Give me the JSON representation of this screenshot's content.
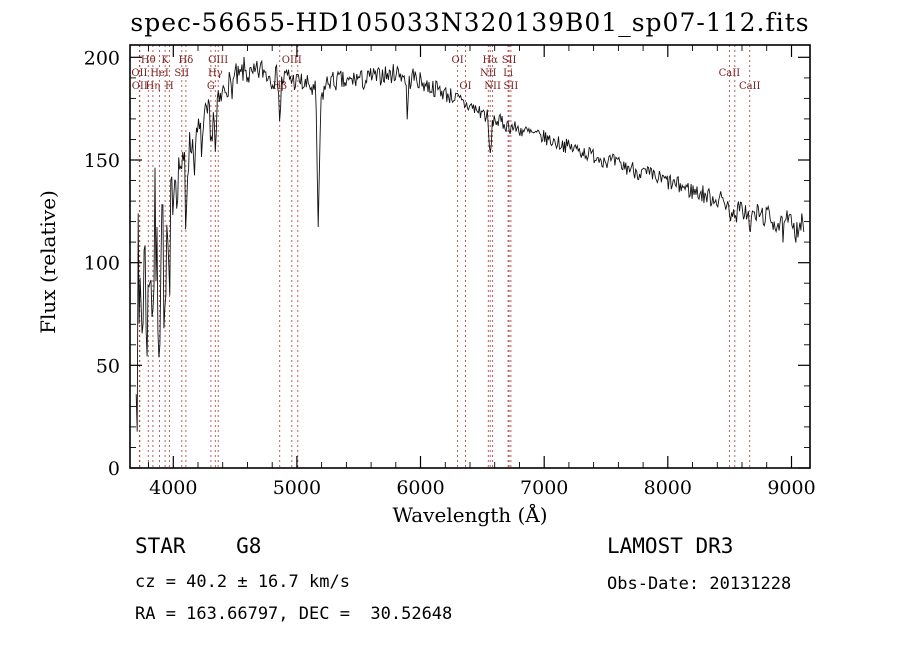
{
  "title": "spec-56655-HD105033N320139B01_sp07-112.fits",
  "annotations": {
    "star_class": "STAR    G8",
    "cz": "cz = 40.2 ± 16.7 km/s",
    "ra_dec": "RA = 163.66797, DEC =  30.52648",
    "survey": "LAMOST DR3",
    "obs_date": "Obs-Date: 20131228"
  },
  "chart_data": {
    "type": "line",
    "title": "spec-56655-HD105033N320139B01_sp07-112.fits",
    "xlabel": "Wavelength (Å)",
    "ylabel": "Flux (relative)",
    "xlim": [
      3650,
      9150
    ],
    "ylim": [
      0,
      206
    ],
    "x_ticks": [
      4000,
      5000,
      6000,
      7000,
      8000,
      9000
    ],
    "y_ticks": [
      0,
      50,
      100,
      150,
      200
    ],
    "x_minor_step": 200,
    "y_minor_step": 10,
    "grid": false,
    "legend": "none",
    "line_color": "#111111",
    "marker_color": "#b34d4d",
    "x_range": [
      3700,
      9100
    ],
    "sample_step": 8,
    "noise_seed": 7,
    "note": "Noisy stellar spectrum: envelope points read from plot; jitter amplitude per wavelength in noise_profile reconstructs the noisy trace.",
    "spectrum_envelope_points": [
      [
        3700,
        75
      ],
      [
        3706,
        38
      ],
      [
        3714,
        95
      ],
      [
        3724,
        55
      ],
      [
        3734,
        100
      ],
      [
        3748,
        68
      ],
      [
        3762,
        105
      ],
      [
        3778,
        85
      ],
      [
        3798,
        70
      ],
      [
        3812,
        110
      ],
      [
        3824,
        95
      ],
      [
        3835,
        72
      ],
      [
        3850,
        120
      ],
      [
        3868,
        95
      ],
      [
        3889,
        68
      ],
      [
        3905,
        130
      ],
      [
        3920,
        108
      ],
      [
        3934,
        48
      ],
      [
        3946,
        115
      ],
      [
        3958,
        100
      ],
      [
        3969,
        62
      ],
      [
        3980,
        125
      ],
      [
        3993,
        135
      ],
      [
        4010,
        145
      ],
      [
        4030,
        138
      ],
      [
        4055,
        150
      ],
      [
        4080,
        143
      ],
      [
        4092,
        150
      ],
      [
        4102,
        112
      ],
      [
        4114,
        148
      ],
      [
        4130,
        155
      ],
      [
        4150,
        160
      ],
      [
        4175,
        150
      ],
      [
        4200,
        165
      ],
      [
        4230,
        158
      ],
      [
        4262,
        170
      ],
      [
        4290,
        172
      ],
      [
        4305,
        152
      ],
      [
        4318,
        170
      ],
      [
        4330,
        176
      ],
      [
        4341,
        148
      ],
      [
        4354,
        176
      ],
      [
        4380,
        178
      ],
      [
        4410,
        184
      ],
      [
        4440,
        188
      ],
      [
        4470,
        185
      ],
      [
        4500,
        191
      ],
      [
        4530,
        189
      ],
      [
        4570,
        194
      ],
      [
        4600,
        192
      ],
      [
        4640,
        190
      ],
      [
        4680,
        193
      ],
      [
        4720,
        194
      ],
      [
        4760,
        192
      ],
      [
        4800,
        190
      ],
      [
        4830,
        191
      ],
      [
        4850,
        190
      ],
      [
        4862,
        166
      ],
      [
        4876,
        188
      ],
      [
        4900,
        190
      ],
      [
        4930,
        191
      ],
      [
        4960,
        189
      ],
      [
        4990,
        188
      ],
      [
        5020,
        189
      ],
      [
        5060,
        186
      ],
      [
        5100,
        187
      ],
      [
        5130,
        183
      ],
      [
        5152,
        184
      ],
      [
        5172,
        118
      ],
      [
        5196,
        180
      ],
      [
        5225,
        185
      ],
      [
        5260,
        189
      ],
      [
        5300,
        188
      ],
      [
        5350,
        189
      ],
      [
        5400,
        187
      ],
      [
        5450,
        189
      ],
      [
        5500,
        190
      ],
      [
        5550,
        188
      ],
      [
        5600,
        191
      ],
      [
        5650,
        190
      ],
      [
        5700,
        192
      ],
      [
        5750,
        191
      ],
      [
        5800,
        193
      ],
      [
        5840,
        192
      ],
      [
        5880,
        190
      ],
      [
        5893,
        170
      ],
      [
        5908,
        188
      ],
      [
        5940,
        191
      ],
      [
        5975,
        189
      ],
      [
        6010,
        188
      ],
      [
        6060,
        186
      ],
      [
        6110,
        185
      ],
      [
        6160,
        184
      ],
      [
        6210,
        182
      ],
      [
        6260,
        181
      ],
      [
        6310,
        179
      ],
      [
        6360,
        177
      ],
      [
        6410,
        176
      ],
      [
        6460,
        174
      ],
      [
        6510,
        173
      ],
      [
        6540,
        171
      ],
      [
        6563,
        151
      ],
      [
        6585,
        170
      ],
      [
        6620,
        169
      ],
      [
        6660,
        168
      ],
      [
        6700,
        167
      ],
      [
        6740,
        166
      ],
      [
        6790,
        165
      ],
      [
        6840,
        164
      ],
      [
        6890,
        163
      ],
      [
        6940,
        162
      ],
      [
        7000,
        161
      ],
      [
        7070,
        159
      ],
      [
        7140,
        158
      ],
      [
        7210,
        156
      ],
      [
        7280,
        155
      ],
      [
        7350,
        153
      ],
      [
        7420,
        152
      ],
      [
        7490,
        150
      ],
      [
        7560,
        149
      ],
      [
        7630,
        147
      ],
      [
        7700,
        146
      ],
      [
        7770,
        144
      ],
      [
        7840,
        143
      ],
      [
        7910,
        141
      ],
      [
        7980,
        140
      ],
      [
        8050,
        138
      ],
      [
        8120,
        137
      ],
      [
        8190,
        135
      ],
      [
        8260,
        134
      ],
      [
        8330,
        132
      ],
      [
        8400,
        131
      ],
      [
        8460,
        130
      ],
      [
        8490,
        129
      ],
      [
        8500,
        119
      ],
      [
        8512,
        127
      ],
      [
        8534,
        126
      ],
      [
        8544,
        116
      ],
      [
        8558,
        125
      ],
      [
        8600,
        126
      ],
      [
        8650,
        124
      ],
      [
        8663,
        112
      ],
      [
        8676,
        122
      ],
      [
        8720,
        124
      ],
      [
        8770,
        123
      ],
      [
        8820,
        122
      ],
      [
        8870,
        120
      ],
      [
        8910,
        118
      ],
      [
        8940,
        114
      ],
      [
        8965,
        121
      ],
      [
        8990,
        118
      ],
      [
        9015,
        122
      ],
      [
        9040,
        115
      ],
      [
        9065,
        121
      ],
      [
        9090,
        117
      ]
    ],
    "noise_profile": [
      [
        3700,
        40
      ],
      [
        3780,
        34
      ],
      [
        3860,
        30
      ],
      [
        3940,
        26
      ],
      [
        4000,
        14
      ],
      [
        4100,
        10
      ],
      [
        4250,
        9
      ],
      [
        4400,
        7
      ],
      [
        4700,
        6
      ],
      [
        5000,
        5
      ],
      [
        5400,
        5
      ],
      [
        5900,
        4.5
      ],
      [
        6500,
        4
      ],
      [
        7000,
        3.5
      ],
      [
        7600,
        4
      ],
      [
        8200,
        4.5
      ],
      [
        8700,
        5
      ],
      [
        9100,
        7
      ]
    ],
    "spectral_lines": [
      {
        "label": "Hθ",
        "wavelength": 3798,
        "row": 1
      },
      {
        "label": "K",
        "wavelength": 3934,
        "row": 1
      },
      {
        "label": "Hδ",
        "wavelength": 4102,
        "row": 1
      },
      {
        "label": "OII",
        "wavelength": 3726,
        "row": 2
      },
      {
        "label": "HeI",
        "wavelength": 3889,
        "row": 2
      },
      {
        "label": "SII",
        "wavelength": 4069,
        "row": 2
      },
      {
        "label": "OII",
        "wavelength": 3729,
        "row": 3
      },
      {
        "label": "Hη",
        "wavelength": 3835,
        "row": 3
      },
      {
        "label": "H",
        "wavelength": 3969,
        "row": 3
      },
      {
        "label": "OIII",
        "wavelength": 4363,
        "row": 1
      },
      {
        "label": "Hγ",
        "wavelength": 4340,
        "row": 2
      },
      {
        "label": "G",
        "wavelength": 4304,
        "row": 3
      },
      {
        "label": "OIII",
        "wavelength": 4959,
        "row": 1
      },
      {
        "label": "",
        "wavelength": 5007,
        "row": 1
      },
      {
        "label": "Hβ",
        "wavelength": 4861,
        "row": 3
      },
      {
        "label": "OI",
        "wavelength": 6300,
        "row": 1
      },
      {
        "label": "Hα",
        "wavelength": 6563,
        "row": 1
      },
      {
        "label": "SII",
        "wavelength": 6716,
        "row": 1
      },
      {
        "label": "NII",
        "wavelength": 6548,
        "row": 2
      },
      {
        "label": "Li",
        "wavelength": 6708,
        "row": 2
      },
      {
        "label": "OI",
        "wavelength": 6364,
        "row": 3
      },
      {
        "label": "NII",
        "wavelength": 6583,
        "row": 3
      },
      {
        "label": "SII",
        "wavelength": 6731,
        "row": 3
      },
      {
        "label": "CaII",
        "wavelength": 8498,
        "row": 2
      },
      {
        "label": "",
        "wavelength": 8542,
        "row": 2
      },
      {
        "label": "CaII",
        "wavelength": 8662,
        "row": 3
      }
    ]
  }
}
